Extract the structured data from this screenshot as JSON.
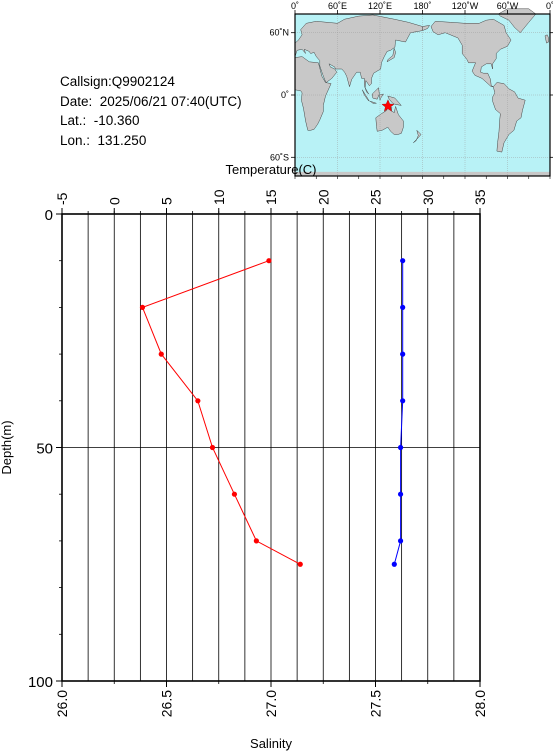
{
  "meta": {
    "callsign": "Callsign:Q9902124",
    "date": "Date:  2025/06/21 07:40(UTC)",
    "lat": "Lat.:  -10.360",
    "lon": "Lon.:  131.250"
  },
  "map": {
    "top_ticks": [
      "0˚",
      "60˚E",
      "120˚E",
      "180˚",
      "120˚W",
      "60˚W",
      "0˚"
    ],
    "lat_ticks": [
      "60˚N",
      "0˚",
      "60˚S"
    ],
    "ocean_color": "#b8f2f6",
    "land_color": "#c8c8c8",
    "marker_color": "#ff0000",
    "marker_lon": 131.25,
    "marker_lat": -10.36
  },
  "chart_data": {
    "type": "line",
    "top_axis_label": "Temperature(C)",
    "bottom_axis_label": "Salinity",
    "y_axis_label": "Depth(m)",
    "temperature_range": [
      -5,
      35
    ],
    "temperature_ticks": [
      "-5",
      "0",
      "5",
      "10",
      "15",
      "20",
      "25",
      "30",
      "35"
    ],
    "salinity_range": [
      26.0,
      28.0
    ],
    "salinity_ticks": [
      "26.0",
      "26.5",
      "27.0",
      "27.5",
      "28.0"
    ],
    "depth_range": [
      0,
      100
    ],
    "depth_ticks": [
      "0",
      "50",
      "100"
    ],
    "grid": true,
    "series": [
      {
        "quantity": "temperature",
        "color": "#ff0000",
        "points": [
          {
            "depth": 10,
            "value": 14.8
          },
          {
            "depth": 20,
            "value": 2.7
          },
          {
            "depth": 30,
            "value": 4.5
          },
          {
            "depth": 40,
            "value": 8.0
          },
          {
            "depth": 50,
            "value": 9.4
          },
          {
            "depth": 60,
            "value": 11.5
          },
          {
            "depth": 70,
            "value": 13.6
          },
          {
            "depth": 75,
            "value": 17.8
          }
        ]
      },
      {
        "quantity": "salinity",
        "color": "#0000ff",
        "points": [
          {
            "depth": 10,
            "value": 27.63
          },
          {
            "depth": 20,
            "value": 27.63
          },
          {
            "depth": 30,
            "value": 27.63
          },
          {
            "depth": 40,
            "value": 27.63
          },
          {
            "depth": 50,
            "value": 27.62
          },
          {
            "depth": 60,
            "value": 27.62
          },
          {
            "depth": 70,
            "value": 27.62
          },
          {
            "depth": 75,
            "value": 27.59
          }
        ]
      }
    ]
  }
}
